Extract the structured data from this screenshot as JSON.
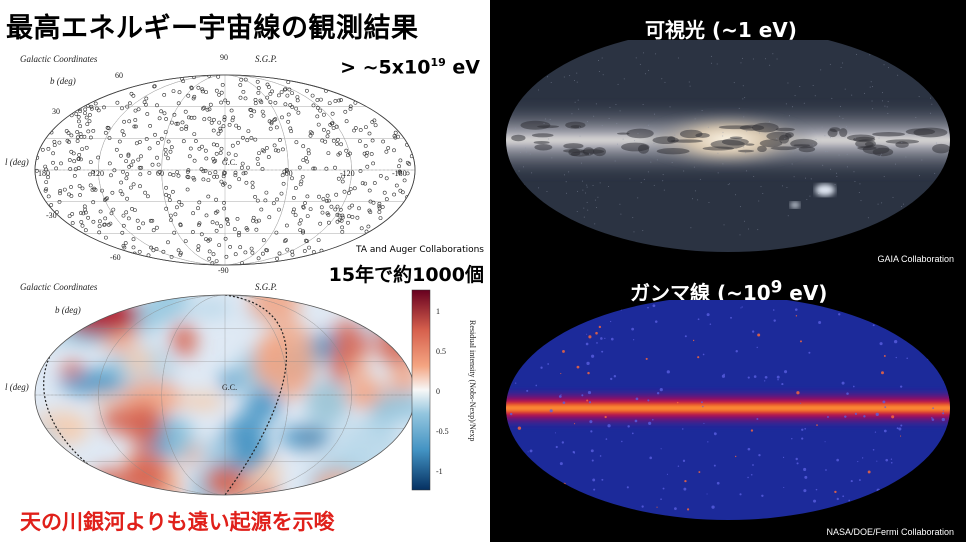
{
  "title": "最高エネルギー宇宙線の観測結果",
  "energy_top": {
    "prefix": "> ~5x10",
    "exp": "19",
    "suffix": " eV"
  },
  "collab_small": "TA and Auger Collaborations",
  "count_label": "15年で約1000個",
  "conclusion": "天の川銀河よりも遠い起源を示唆",
  "map_top": {
    "header": "Galactic Coordinates",
    "b_label": "b (deg)",
    "l_label": "l (deg)",
    "sgp": "S.G.P.",
    "gc": "G.C.",
    "lat_ticks": [
      "90",
      "60",
      "30",
      "-30",
      "-60",
      "-90"
    ],
    "lon_ticks": [
      "180",
      "120",
      "60",
      "0",
      "-60",
      "-120",
      "-180"
    ]
  },
  "map_bottom": {
    "header": "Galactic Coordinates",
    "b_label": "b (deg)",
    "l_label": "l (deg)",
    "sgp": "S.G.P.",
    "gc": "G.C.",
    "colorbar_title": "Residual intensity (Nobs-Nexp)/Nexp",
    "colorbar_ticks": [
      "1",
      "0.5",
      "0",
      "-0.5",
      "-1"
    ]
  },
  "visible": {
    "label": "可視光  (~1 eV)",
    "credit": "GAIA Collaboration"
  },
  "gamma": {
    "prefix": "ガンマ線 (~10",
    "exp": "9",
    "suffix": " eV)",
    "credit": "NASA/DOE/Fermi Collaboration"
  },
  "colors": {
    "conclusion": "#e0201a",
    "gamma_band": "#ff3a00",
    "gamma_bg": "#1a2a9e"
  }
}
